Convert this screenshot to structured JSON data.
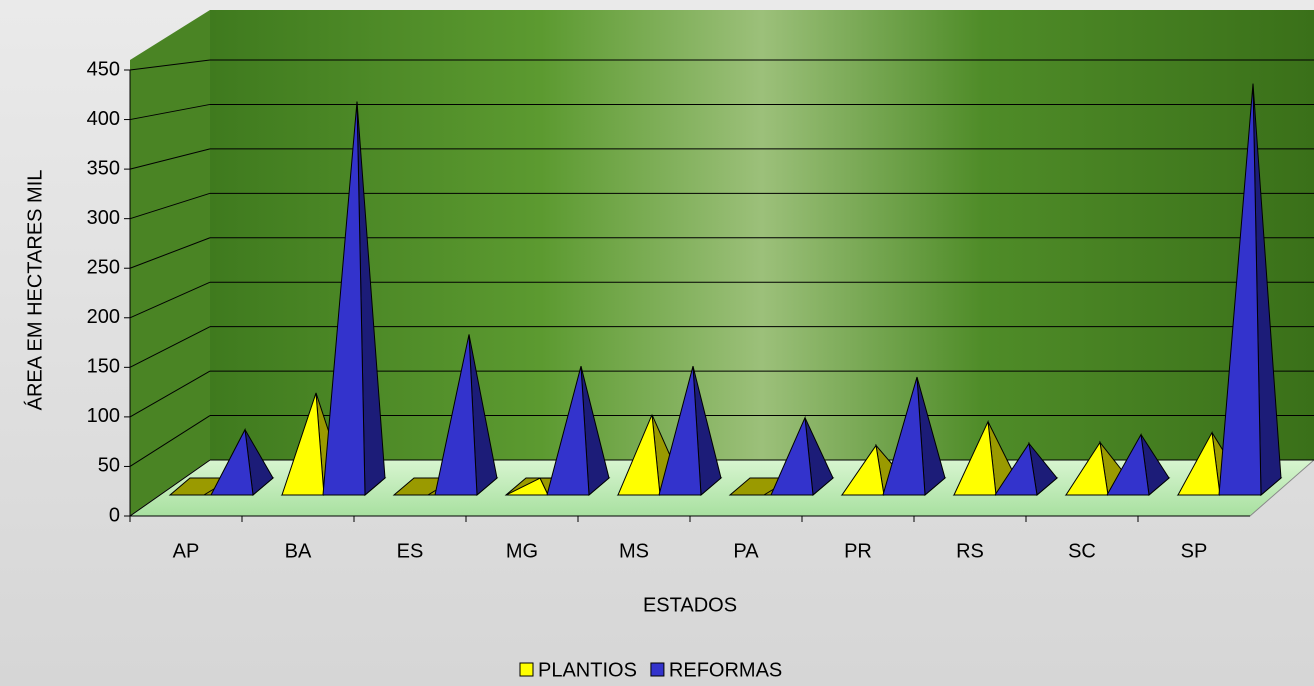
{
  "chart_data": {
    "type": "pyramid3d",
    "x_label": "ESTADOS",
    "y_label": "ÁREA EM HECTARES MIL",
    "categories": [
      "AP",
      "BA",
      "ES",
      "MG",
      "MS",
      "PA",
      "PR",
      "RS",
      "SC",
      "SP"
    ],
    "series": [
      {
        "name": "PLANTIOS",
        "color": "#ffff00",
        "values": [
          0,
          103,
          0,
          17,
          81,
          0,
          50,
          74,
          53,
          63
        ]
      },
      {
        "name": "REFORMAS",
        "color": "#3333cc",
        "values": [
          66,
          397,
          162,
          130,
          130,
          78,
          119,
          52,
          61,
          415
        ]
      }
    ],
    "ylim": [
      0,
      450
    ],
    "yticks": [
      0,
      50,
      100,
      150,
      200,
      250,
      300,
      350,
      400,
      450
    ],
    "grid": true,
    "legend": "bottom"
  }
}
